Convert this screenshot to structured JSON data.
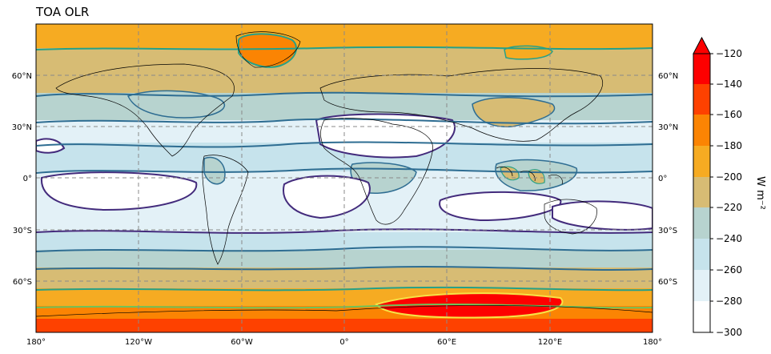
{
  "title": "TOA OLR",
  "colors": {
    "band_-300_-280": "#ffffff",
    "band_-280_-260": "#e3f1f7",
    "band_-260_-240": "#c6e3ec",
    "band_-240_-220": "#b7d3cf",
    "band_-220_-200": "#d7bc74",
    "band_-200_-180": "#f6ab22",
    "band_-180_-160": "#fb8403",
    "band_-160_-140": "#fe4100",
    "band_-140_-120": "#fd0000",
    "contour_dark": "#432b7c",
    "contour_mid": "#2e6d92",
    "contour_teal": "#26a088",
    "contour_green": "#6fc35a",
    "contour_yellow": "#f6e346",
    "grid": "#8a8a8a",
    "coast": "#000000"
  },
  "map": {
    "projection": "PlateCarree",
    "extent_lon": [
      -180,
      180
    ],
    "extent_lat": [
      -90,
      90
    ],
    "lat_ticks": [
      "60°N",
      "30°N",
      "0°",
      "30°S",
      "60°S"
    ],
    "lon_ticks": [
      "180°",
      "120°W",
      "60°W",
      "0°",
      "60°E",
      "120°E",
      "180°"
    ],
    "gridlines": true,
    "gridline_style": "dashed"
  },
  "colorbar": {
    "levels": [
      -300,
      -280,
      -260,
      -240,
      -220,
      -200,
      -180,
      -160,
      -140,
      -120
    ],
    "tick_labels": [
      "−300",
      "−280",
      "−260",
      "−240",
      "−220",
      "−200",
      "−180",
      "−160",
      "−140",
      "−120"
    ],
    "extend": "max",
    "unit_label": "W m⁻²"
  }
}
